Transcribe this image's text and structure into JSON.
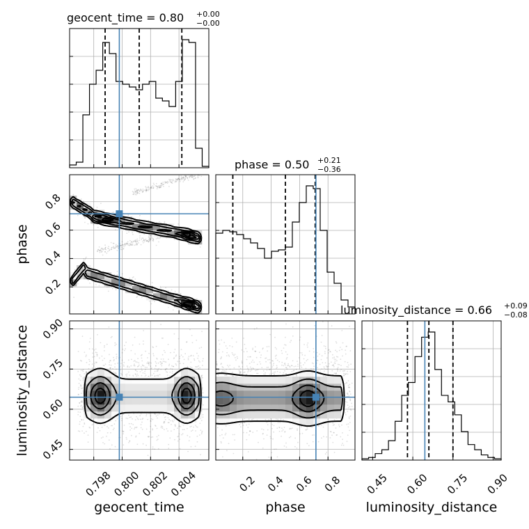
{
  "chart_data": {
    "type": "corner",
    "parameters": [
      "geocent_time",
      "phase",
      "luminosity_distance"
    ],
    "titles": [
      {
        "param": "geocent_time",
        "main": "geocent_time = 0.80",
        "plus": "+0.00",
        "minus": "−0.00"
      },
      {
        "param": "phase",
        "main": "phase = 0.50",
        "plus": "+0.21",
        "minus": "−0.36"
      },
      {
        "param": "luminosity_distance",
        "main": "luminosity_distance = 0.66",
        "plus": "+0.09",
        "minus": "−0.08"
      }
    ],
    "ranges": {
      "geocent_time": [
        0.7963,
        0.8061
      ],
      "phase": [
        0.01,
        0.99
      ],
      "luminosity_distance": [
        0.41,
        0.93
      ]
    },
    "ticks": {
      "geocent_time": {
        "values": [
          0.798,
          0.8,
          0.802,
          0.804
        ],
        "labels": [
          "0.798",
          "0.800",
          "0.802",
          "0.804"
        ]
      },
      "phase": {
        "values": [
          0.2,
          0.4,
          0.6,
          0.8
        ],
        "labels": [
          "0.2",
          "0.4",
          "0.6",
          "0.8"
        ]
      },
      "luminosity_distance": {
        "values": [
          0.45,
          0.6,
          0.75,
          0.9
        ],
        "labels": [
          "0.45",
          "0.60",
          "0.75",
          "0.90"
        ]
      }
    },
    "truths": {
      "geocent_time": 0.7998,
      "phase": 0.715,
      "luminosity_distance": 0.645
    },
    "quantiles": {
      "geocent_time": [
        0.7988,
        0.8012,
        0.8042
      ],
      "phase": [
        0.13,
        0.5,
        0.71
      ],
      "luminosity_distance": [
        0.58,
        0.66,
        0.75
      ]
    },
    "histograms": {
      "geocent_time": [
        2,
        4,
        38,
        60,
        70,
        90,
        82,
        62,
        60,
        58,
        56,
        60,
        62,
        50,
        48,
        44,
        62,
        92,
        90,
        14,
        1
      ],
      "phase": [
        58,
        60,
        59,
        57,
        54,
        51,
        47,
        40,
        45,
        46,
        48,
        66,
        80,
        92,
        90,
        60,
        30,
        22,
        10,
        5
      ],
      "luminosity_distance": [
        1,
        2,
        5,
        8,
        15,
        30,
        50,
        60,
        80,
        95,
        99,
        70,
        50,
        45,
        35,
        22,
        12,
        8,
        4,
        2,
        1
      ]
    },
    "grid": true
  }
}
